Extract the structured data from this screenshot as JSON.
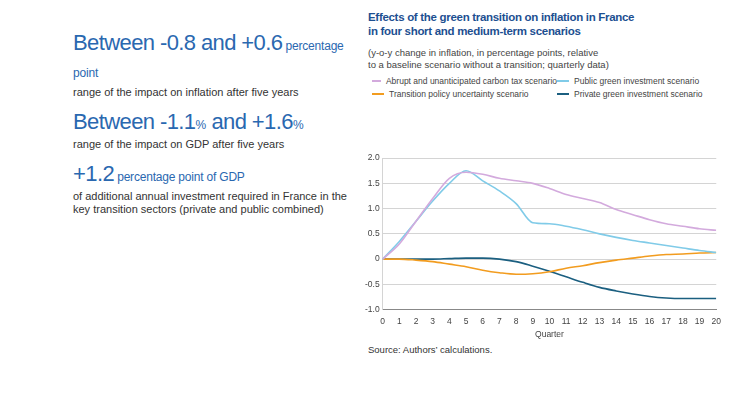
{
  "stats": [
    {
      "headline": [
        {
          "large": "Between -0.8 and +0.6",
          "small": "percentage point"
        }
      ],
      "description": "range of the impact on inflation after five years"
    },
    {
      "headline": [
        {
          "large": "Between -1.1",
          "small": "%"
        },
        {
          "large": "and +1.6",
          "small": "%"
        }
      ],
      "description": "range of the impact on GDP after five years"
    },
    {
      "headline": [
        {
          "large": "+1.2",
          "small": "percentage point of GDP"
        }
      ],
      "description": "of additional annual investment required in France in the key transition sectors (private and public combined)"
    }
  ],
  "chart_data": {
    "type": "line",
    "title": [
      "Effects of the green transition on inflation in France",
      "in four short and medium-term scenarios"
    ],
    "subtitle": [
      "(y-o-y change in inflation, in percentage points, relative",
      "to a baseline scenario without a transition; quarterly data)"
    ],
    "x_label": "Quarter",
    "source": "Source: Authors’ calculations.",
    "x": [
      0,
      1,
      2,
      3,
      4,
      5,
      6,
      7,
      8,
      9,
      10,
      11,
      12,
      13,
      14,
      15,
      16,
      17,
      18,
      19,
      20
    ],
    "xlim": [
      0,
      20
    ],
    "xticks": [
      0,
      1,
      2,
      3,
      4,
      5,
      6,
      7,
      8,
      9,
      10,
      11,
      12,
      13,
      14,
      15,
      16,
      17,
      18,
      19,
      20
    ],
    "ylim": [
      -1,
      2
    ],
    "yticks": [
      {
        "value": -1,
        "label": "-1.0"
      },
      -0.5,
      0,
      0.5,
      {
        "value": 1,
        "label": "1.0"
      },
      1.5,
      {
        "value": 2,
        "label": "2.0"
      }
    ],
    "grid": "y",
    "legend": "top",
    "series": [
      {
        "name": "Abrupt and unanticipated carbon tax scenario",
        "color": "#d3aadd",
        "values": [
          0,
          0.3,
          0.75,
          1.2,
          1.6,
          1.72,
          1.68,
          1.6,
          1.55,
          1.5,
          1.4,
          1.28,
          1.2,
          1.12,
          0.98,
          0.88,
          0.78,
          0.7,
          0.65,
          0.6,
          0.57
        ]
      },
      {
        "name": "Public green investment scenario",
        "color": "#80cbe8",
        "values": [
          0,
          0.35,
          0.75,
          1.15,
          1.5,
          1.75,
          1.55,
          1.35,
          1.1,
          0.72,
          0.7,
          0.65,
          0.58,
          0.5,
          0.43,
          0.37,
          0.32,
          0.27,
          0.22,
          0.17,
          0.13
        ]
      },
      {
        "name": "Transition policy uncertainty scenario",
        "color": "#f29c1f",
        "values": [
          0,
          0,
          -0.02,
          -0.05,
          -0.1,
          -0.15,
          -0.22,
          -0.27,
          -0.3,
          -0.29,
          -0.25,
          -0.18,
          -0.13,
          -0.07,
          -0.02,
          0.02,
          0.06,
          0.09,
          0.1,
          0.12,
          0.13
        ]
      },
      {
        "name": "Private green investment scenario",
        "color": "#1b5f80",
        "values": [
          0,
          0,
          0,
          0,
          0.01,
          0.02,
          0.02,
          0,
          -0.05,
          -0.14,
          -0.24,
          -0.35,
          -0.46,
          -0.56,
          -0.63,
          -0.69,
          -0.74,
          -0.77,
          -0.78,
          -0.78,
          -0.78
        ]
      }
    ]
  }
}
